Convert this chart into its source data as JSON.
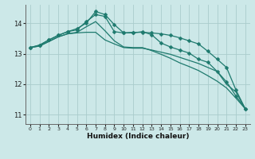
{
  "xlabel": "Humidex (Indice chaleur)",
  "bg_color": "#cce8e8",
  "grid_color": "#aacccc",
  "line_color": "#1e7a6e",
  "xlim": [
    -0.5,
    23.5
  ],
  "ylim": [
    10.7,
    14.6
  ],
  "yticks": [
    11,
    12,
    13,
    14
  ],
  "xticks": [
    0,
    1,
    2,
    3,
    4,
    5,
    6,
    7,
    8,
    9,
    10,
    11,
    12,
    13,
    14,
    15,
    16,
    17,
    18,
    19,
    20,
    21,
    22,
    23
  ],
  "series": [
    {
      "x": [
        0,
        1,
        2,
        3,
        4,
        5,
        6,
        7,
        8,
        9,
        10,
        11,
        12,
        13,
        14,
        15,
        16,
        17,
        18,
        19,
        20,
        21,
        22,
        23
      ],
      "y": [
        13.2,
        13.25,
        13.4,
        13.55,
        13.65,
        13.68,
        13.7,
        13.7,
        13.45,
        13.32,
        13.2,
        13.18,
        13.18,
        13.12,
        13.05,
        12.98,
        12.88,
        12.78,
        12.68,
        12.55,
        12.42,
        12.0,
        11.75,
        11.2
      ],
      "marker": false,
      "lw": 0.9
    },
    {
      "x": [
        0,
        1,
        2,
        3,
        4,
        5,
        6,
        7,
        8,
        9,
        10,
        11,
        12,
        13,
        14,
        15,
        16,
        17,
        18,
        19,
        20,
        21,
        22,
        23
      ],
      "y": [
        13.2,
        13.25,
        13.4,
        13.55,
        13.65,
        13.7,
        13.88,
        14.05,
        13.75,
        13.42,
        13.22,
        13.2,
        13.2,
        13.1,
        12.98,
        12.85,
        12.7,
        12.58,
        12.45,
        12.28,
        12.1,
        11.88,
        11.55,
        11.2
      ],
      "marker": false,
      "lw": 0.9
    },
    {
      "x": [
        0,
        1,
        2,
        3,
        4,
        5,
        6,
        7,
        8,
        9,
        10,
        11,
        12,
        13,
        14,
        15,
        16,
        17,
        18,
        19,
        20,
        21,
        22,
        23
      ],
      "y": [
        13.2,
        13.28,
        13.45,
        13.6,
        13.72,
        13.78,
        14.05,
        14.28,
        14.22,
        13.72,
        13.68,
        13.68,
        13.72,
        13.62,
        13.35,
        13.22,
        13.12,
        13.02,
        12.82,
        12.72,
        12.42,
        12.08,
        11.62,
        11.2
      ],
      "marker": true,
      "marker_size": 2.5,
      "lw": 0.9
    },
    {
      "x": [
        0,
        1,
        2,
        3,
        4,
        5,
        6,
        7,
        8,
        9,
        10,
        11,
        12,
        13,
        14,
        15,
        16,
        17,
        18,
        19,
        20,
        21,
        22,
        23
      ],
      "y": [
        13.2,
        13.28,
        13.45,
        13.6,
        13.72,
        13.82,
        14.0,
        14.38,
        14.28,
        13.95,
        13.68,
        13.7,
        13.7,
        13.68,
        13.65,
        13.6,
        13.52,
        13.42,
        13.32,
        13.08,
        12.82,
        12.55,
        11.82,
        11.2
      ],
      "marker": true,
      "marker_size": 2.5,
      "lw": 0.9
    }
  ]
}
